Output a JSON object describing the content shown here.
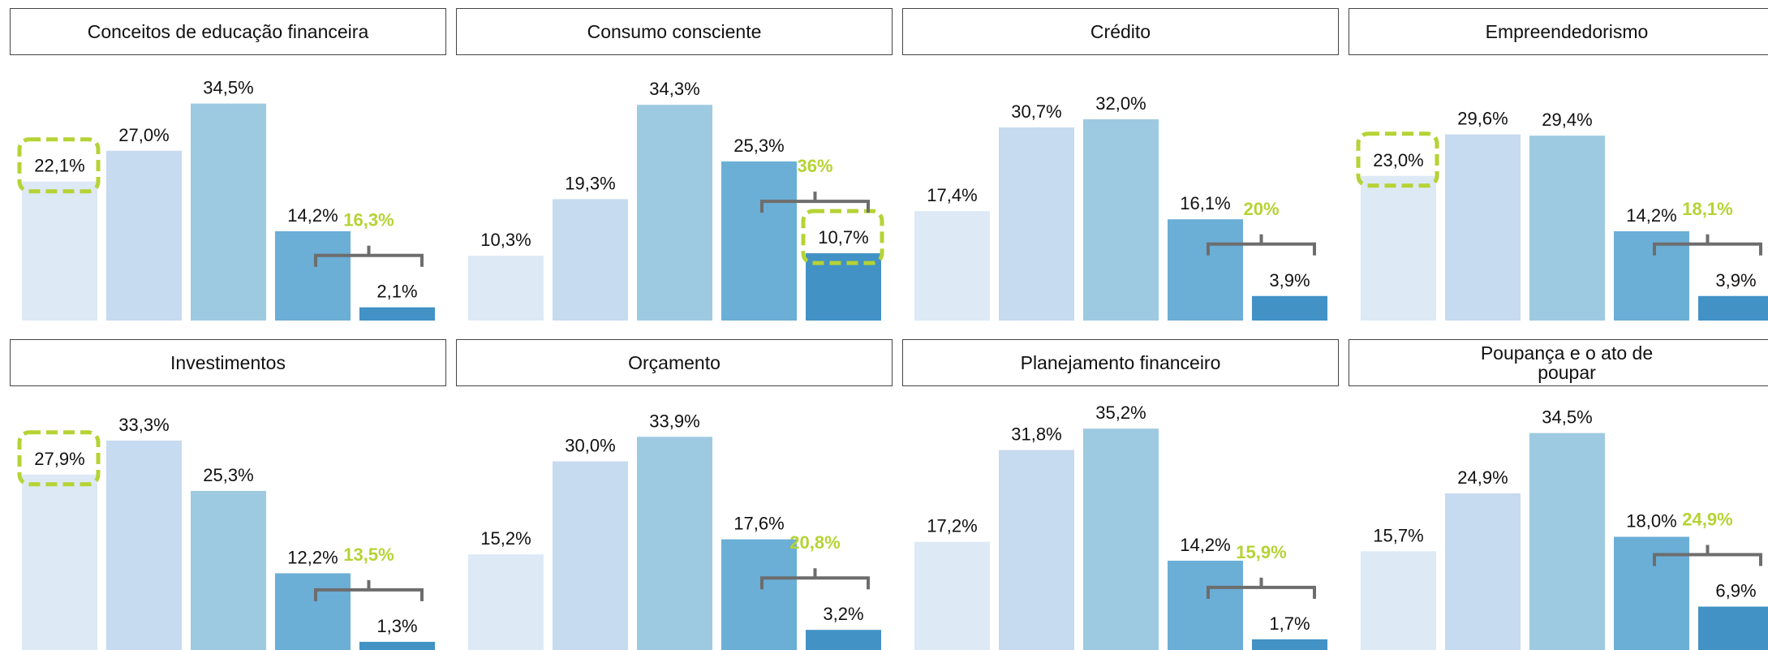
{
  "bar_colors": [
    "#dde9f5",
    "#c6daf0",
    "#9ecae1",
    "#6baed6",
    "#4292c6"
  ],
  "highlight_color": "#b5d334",
  "chart_data": [
    {
      "type": "bar",
      "title": "Conceitos de educação financeira",
      "values": [
        22.1,
        27.0,
        34.5,
        14.2,
        2.1
      ],
      "value_labels": [
        "22,1%",
        "27,0%",
        "34,5%",
        "14,2%",
        "2,1%"
      ],
      "annotation": {
        "value": 16.3,
        "label": "16,3%"
      },
      "highlighted": 0,
      "ylim": [
        0,
        40
      ]
    },
    {
      "type": "bar",
      "title": "Consumo consciente",
      "values": [
        10.3,
        19.3,
        34.3,
        25.3,
        10.7
      ],
      "value_labels": [
        "10,3%",
        "19,3%",
        "34,3%",
        "25,3%",
        "10,7%"
      ],
      "annotation": {
        "value": 36,
        "label": "36%"
      },
      "highlighted": 4,
      "ylim": [
        0,
        40
      ]
    },
    {
      "type": "bar",
      "title": "Crédito",
      "values": [
        17.4,
        30.7,
        32.0,
        16.1,
        3.9
      ],
      "value_labels": [
        "17,4%",
        "30,7%",
        "32,0%",
        "16,1%",
        "3,9%"
      ],
      "annotation": {
        "value": 20,
        "label": "20%"
      },
      "ylim": [
        0,
        40
      ]
    },
    {
      "type": "bar",
      "title": "Empreendedorismo",
      "values": [
        23.0,
        29.6,
        29.4,
        14.2,
        3.9
      ],
      "value_labels": [
        "23,0%",
        "29,6%",
        "29,4%",
        "14,2%",
        "3,9%"
      ],
      "annotation": {
        "value": 18.1,
        "label": "18,1%"
      },
      "highlighted": 0,
      "ylim": [
        0,
        40
      ]
    },
    {
      "type": "bar",
      "title": "Investimentos",
      "values": [
        27.9,
        33.3,
        25.3,
        12.2,
        1.3
      ],
      "value_labels": [
        "27,9%",
        "33,3%",
        "25,3%",
        "12,2%",
        "1,3%"
      ],
      "annotation": {
        "value": 13.5,
        "label": "13,5%"
      },
      "highlighted": 0,
      "ylim": [
        0,
        40
      ]
    },
    {
      "type": "bar",
      "title": "Orçamento",
      "values": [
        15.2,
        30.0,
        33.9,
        17.6,
        3.2
      ],
      "value_labels": [
        "15,2%",
        "30,0%",
        "33,9%",
        "17,6%",
        "3,2%"
      ],
      "annotation": {
        "value": 20.8,
        "label": "20,8%"
      },
      "ylim": [
        0,
        40
      ]
    },
    {
      "type": "bar",
      "title": "Planejamento financeiro",
      "values": [
        17.2,
        31.8,
        35.2,
        14.2,
        1.7
      ],
      "value_labels": [
        "17,2%",
        "31,8%",
        "35,2%",
        "14,2%",
        "1,7%"
      ],
      "annotation": {
        "value": 15.9,
        "label": "15,9%"
      },
      "ylim": [
        0,
        40
      ]
    },
    {
      "type": "bar",
      "title": "Poupança e o ato de poupar",
      "values": [
        15.7,
        24.9,
        34.5,
        18.0,
        6.9
      ],
      "value_labels": [
        "15,7%",
        "24,9%",
        "34,5%",
        "18,0%",
        "6,9%"
      ],
      "annotation": {
        "value": 24.9,
        "label": "24,9%"
      },
      "ylim": [
        0,
        40
      ]
    }
  ]
}
